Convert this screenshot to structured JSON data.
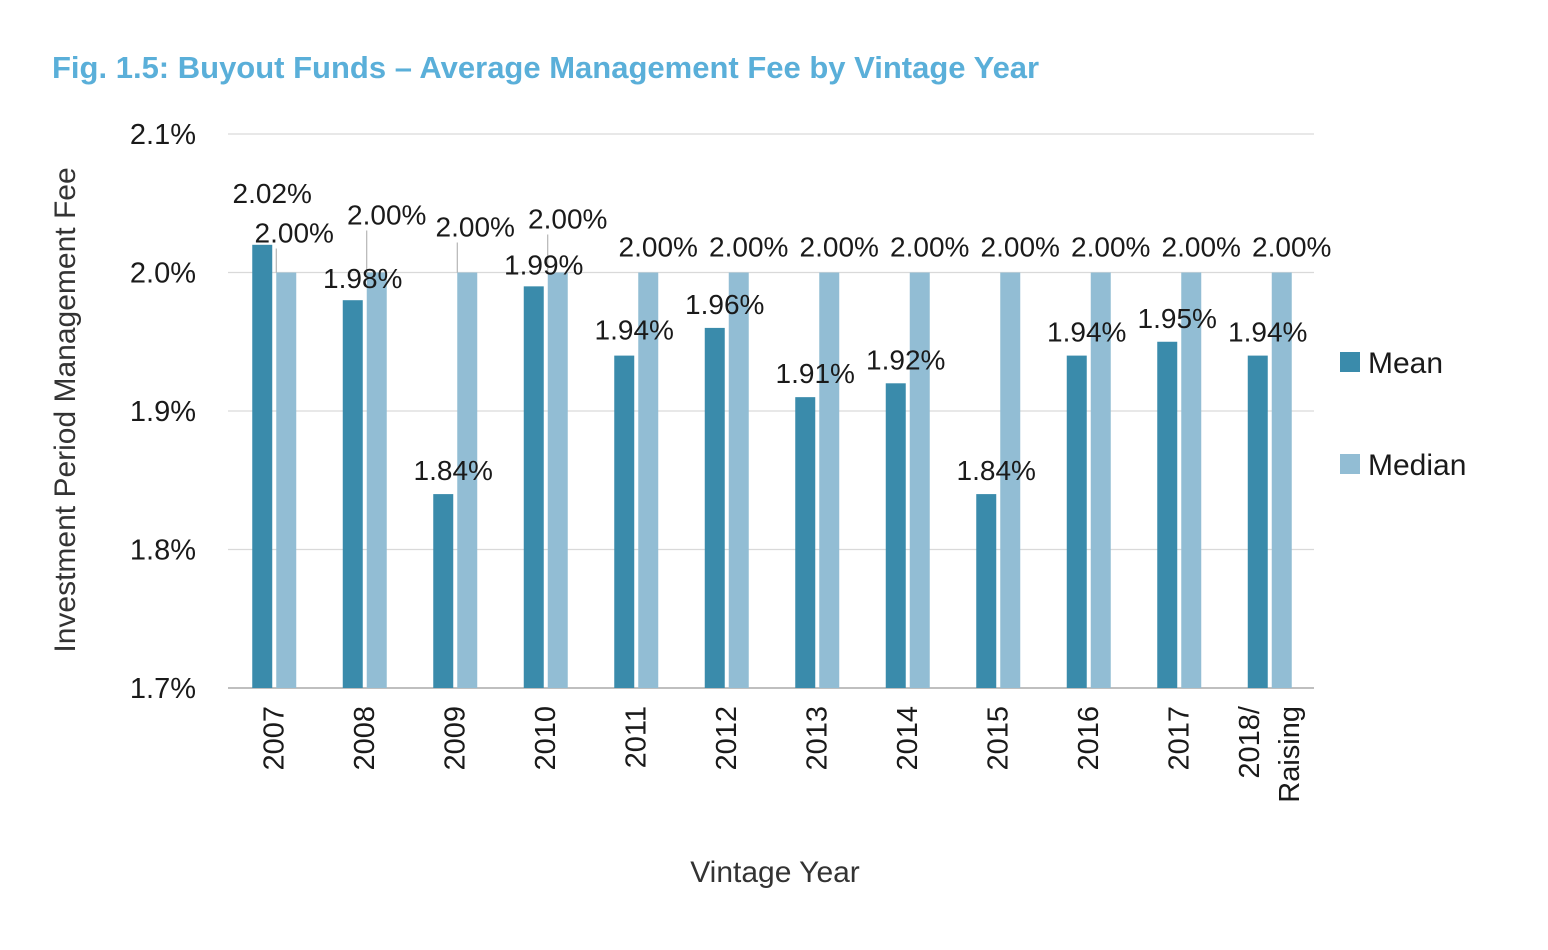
{
  "chart_data": {
    "type": "bar",
    "title": "Fig. 1.5: Buyout Funds – Average Management Fee by Vintage Year",
    "xlabel": "Vintage Year",
    "ylabel": "Investment Period Management Fee",
    "ylim": [
      1.7,
      2.1
    ],
    "yticks": [
      "1.7%",
      "1.8%",
      "1.9%",
      "2.0%",
      "2.1%"
    ],
    "grid": true,
    "legend_position": "right",
    "categories": [
      [
        "2007"
      ],
      [
        "2008"
      ],
      [
        "2009"
      ],
      [
        "2010"
      ],
      [
        "2011"
      ],
      [
        "2012"
      ],
      [
        "2013"
      ],
      [
        "2014"
      ],
      [
        "2015"
      ],
      [
        "2016"
      ],
      [
        "2017"
      ],
      [
        "2018/",
        "Raising"
      ]
    ],
    "series": [
      {
        "name": "Mean",
        "color": "#3a8bab",
        "values": [
          2.02,
          1.98,
          1.84,
          1.99,
          1.94,
          1.96,
          1.91,
          1.92,
          1.84,
          1.94,
          1.95,
          1.94
        ],
        "labels": [
          "2.02%",
          "1.98%",
          "1.84%",
          "1.99%",
          "1.94%",
          "1.96%",
          "1.91%",
          "1.92%",
          "1.84%",
          "1.94%",
          "1.95%",
          "1.94%"
        ]
      },
      {
        "name": "Median",
        "color": "#92bdd4",
        "values": [
          2.0,
          2.0,
          2.0,
          2.0,
          2.0,
          2.0,
          2.0,
          2.0,
          2.0,
          2.0,
          2.0,
          2.0
        ],
        "labels": [
          "2.00%",
          "2.00%",
          "2.00%",
          "2.00%",
          "2.00%",
          "2.00%",
          "2.00%",
          "2.00%",
          "2.00%",
          "2.00%",
          "2.00%",
          "2.00%"
        ]
      }
    ],
    "colors": {
      "title": "#5aafd9",
      "gridline": "#d9d9d9",
      "axis": "#bfbfbf",
      "leader": "#a6a6a6"
    }
  }
}
